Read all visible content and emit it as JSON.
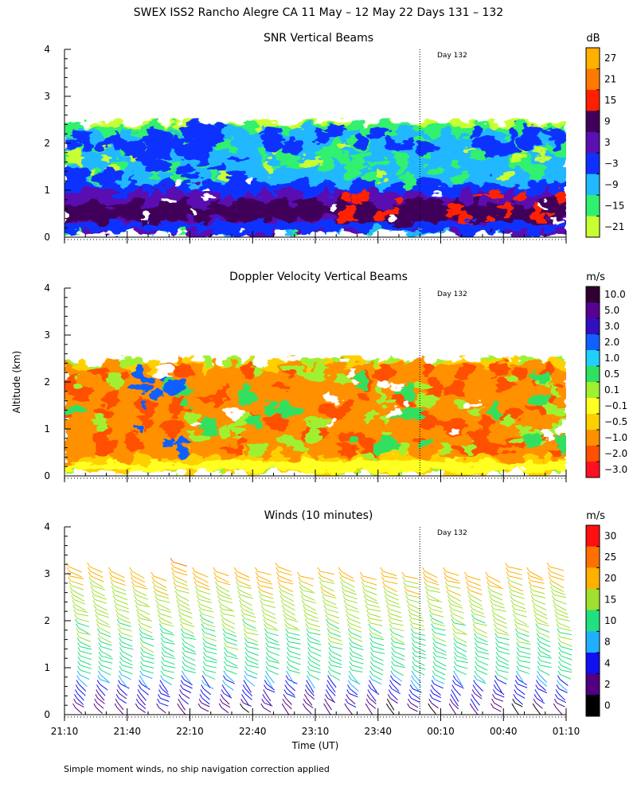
{
  "page": {
    "title": "SWEX ISS2 Rancho Alegre CA  11 May – 12 May 22 Days 131 – 132",
    "ylabel": "Altitude (km)",
    "xlabel": "Time (UT)",
    "footnote": "Simple moment winds, no ship navigation correction applied"
  },
  "chart_data": [
    {
      "type": "heatmap",
      "title": "SNR Vertical Beams",
      "xlabel": "Time (UT)",
      "ylabel": "Altitude (km)",
      "xlim": [
        "21:10",
        "01:10"
      ],
      "ylim": [
        0,
        4
      ],
      "y_ticks": [
        "0",
        "1",
        "2",
        "3",
        "4"
      ],
      "day_marker": {
        "time": "00:00",
        "label": "Day 132"
      },
      "colorbar": {
        "unit": "dB",
        "labels": [
          "27",
          "21",
          "15",
          "9",
          "3",
          "−3",
          "−9",
          "−15",
          "−21"
        ],
        "colors": [
          "#ffb000",
          "#ff7a00",
          "#ff2000",
          "#40005a",
          "#5a10b0",
          "#1030ff",
          "#20b8ff",
          "#30f070",
          "#c8ff30"
        ]
      },
      "notes": "Echo region 0.2-2.4 km; strong (3-9 dB) layers near 0.3-0.9 km, weaker (-9 to -21 dB) near top"
    },
    {
      "type": "heatmap",
      "title": "Doppler Velocity Vertical Beams",
      "xlabel": "Time (UT)",
      "ylabel": "Altitude (km)",
      "xlim": [
        "21:10",
        "01:10"
      ],
      "ylim": [
        0,
        4
      ],
      "y_ticks": [
        "0",
        "1",
        "2",
        "3",
        "4"
      ],
      "day_marker": {
        "time": "00:00",
        "label": "Day 132"
      },
      "colorbar": {
        "unit": "m/s",
        "labels": [
          "10.0",
          "5.0",
          "3.0",
          "2.0",
          "1.0",
          "0.5",
          "0.1",
          "−0.1",
          "−0.5",
          "−1.0",
          "−2.0",
          "−3.0"
        ],
        "colors": [
          "#300030",
          "#5a0090",
          "#3010c0",
          "#1060ff",
          "#20d0ff",
          "#30e060",
          "#a0f030",
          "#ffff20",
          "#ffd000",
          "#ff9000",
          "#ff5000",
          "#ff1020"
        ]
      },
      "notes": "Mostly -0.5 to -1.0 m/s (orange) in 0.3-2.4 km, near 0 (yellow) below 0.3 km"
    },
    {
      "type": "scatter",
      "subtype": "wind-barbs",
      "title": "Winds (10 minutes)",
      "xlabel": "Time (UT)",
      "ylabel": "Altitude (km)",
      "xlim": [
        "21:10",
        "01:10"
      ],
      "ylim": [
        0,
        4
      ],
      "y_ticks": [
        "0",
        "1",
        "2",
        "3",
        "4"
      ],
      "x_ticks": [
        "21:10",
        "21:40",
        "22:10",
        "22:40",
        "23:10",
        "23:40",
        "00:10",
        "00:40",
        "01:10"
      ],
      "day_marker": {
        "time": "00:00",
        "label": "Day 132"
      },
      "profile_times": [
        "21:10",
        "21:20",
        "21:30",
        "21:40",
        "21:50",
        "22:00",
        "22:10",
        "22:20",
        "22:30",
        "22:40",
        "22:50",
        "23:00",
        "23:10",
        "23:20",
        "23:30",
        "23:40",
        "23:50",
        "00:00",
        "00:10",
        "00:20",
        "00:30",
        "00:40",
        "00:50",
        "01:00"
      ],
      "speed_profile": {
        "altitude_km": [
          0.1,
          0.5,
          1.0,
          1.5,
          2.0,
          2.5,
          3.0,
          3.2
        ],
        "speed_ms": [
          2,
          5,
          12,
          14,
          16,
          18,
          22,
          24
        ]
      },
      "colorbar": {
        "unit": "m/s",
        "labels": [
          "30",
          "25",
          "20",
          "15",
          "10",
          "8",
          "4",
          "2",
          "0"
        ],
        "colors": [
          "#ff1010",
          "#ff7000",
          "#ffb000",
          "#a0e030",
          "#20e080",
          "#20b0ff",
          "#1010f0",
          "#500080",
          "#000000"
        ]
      }
    }
  ]
}
